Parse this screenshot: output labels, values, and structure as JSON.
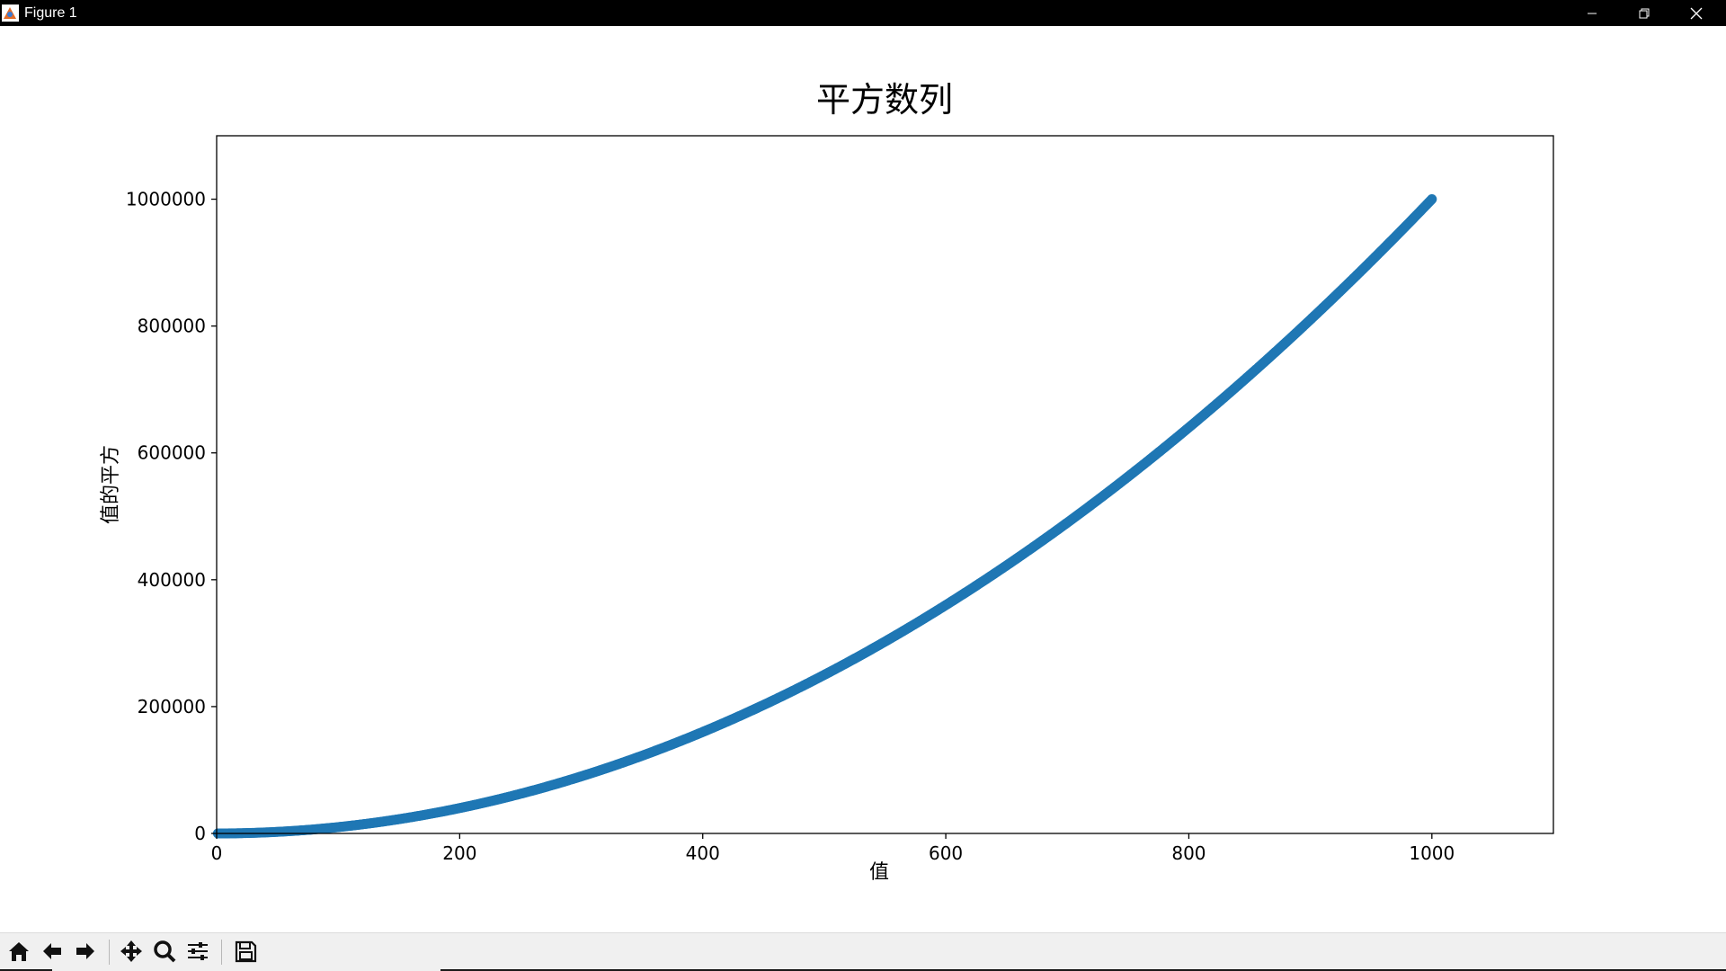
{
  "window": {
    "title": "Figure 1"
  },
  "toolbar": {
    "buttons": [
      {
        "name": "home",
        "icon": "home-icon"
      },
      {
        "name": "back",
        "icon": "arrow-left-icon"
      },
      {
        "name": "forward",
        "icon": "arrow-right-icon"
      },
      {
        "name": "pan",
        "icon": "move-icon"
      },
      {
        "name": "zoom",
        "icon": "magnifier-icon"
      },
      {
        "name": "configure",
        "icon": "sliders-icon"
      },
      {
        "name": "save",
        "icon": "floppy-icon"
      }
    ]
  },
  "colors": {
    "series": "#1f77b4",
    "titlebar": "#000000",
    "toolbar": "#f0f0f0"
  },
  "chart_data": {
    "type": "scatter",
    "title": "平方数列",
    "xlabel": "值",
    "ylabel": "值的平方",
    "xlim": [
      0,
      1100
    ],
    "ylim": [
      0,
      1100000
    ],
    "xticks": [
      0,
      200,
      400,
      600,
      800,
      1000
    ],
    "xtick_labels": [
      "0",
      "200",
      "400",
      "600",
      "800",
      "1000"
    ],
    "yticks": [
      0,
      200000,
      400000,
      600000,
      800000,
      1000000
    ],
    "ytick_labels": [
      "0",
      "200000",
      "400000",
      "600000",
      "800000",
      "1000000"
    ],
    "grid": false,
    "series": [
      {
        "formula": "y = x^2",
        "x_range": [
          1,
          1000
        ],
        "x": [
          1,
          50,
          100,
          150,
          200,
          250,
          300,
          350,
          400,
          450,
          500,
          550,
          600,
          650,
          700,
          750,
          800,
          850,
          900,
          950,
          1000
        ],
        "y": [
          1,
          2500,
          10000,
          22500,
          40000,
          62500,
          90000,
          122500,
          160000,
          202500,
          250000,
          302500,
          360000,
          422500,
          490000,
          562500,
          640000,
          722500,
          810000,
          902500,
          1000000
        ]
      }
    ]
  }
}
